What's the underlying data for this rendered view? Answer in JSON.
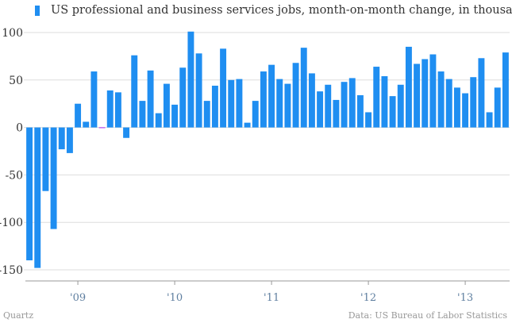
{
  "chart_data": {
    "type": "bar",
    "title": "US professional and business services jobs, month-on-month change, in thousands",
    "xlabel": "",
    "ylabel": "",
    "ylim": [
      -150,
      100
    ],
    "yticks": [
      100,
      50,
      0,
      -50,
      -100,
      -150
    ],
    "ytick_labels": [
      "100",
      "50",
      "0",
      "-50",
      "-100",
      "-150"
    ],
    "xtick_labels": [
      {
        "label": "'09",
        "index": 6
      },
      {
        "label": "'10",
        "index": 18
      },
      {
        "label": "'11",
        "index": 30
      },
      {
        "label": "'12",
        "index": 42
      },
      {
        "label": "'13",
        "index": 54
      }
    ],
    "grid": true,
    "series": [
      {
        "name": "US professional and business services jobs, month-on-month change, in thousands",
        "values": [
          -140,
          -148,
          -67,
          -107,
          -23,
          -27,
          25,
          6,
          59,
          -1,
          39,
          37,
          -11,
          76,
          28,
          60,
          15,
          46,
          24,
          63,
          101,
          78,
          28,
          44,
          83,
          50,
          51,
          5,
          28,
          59,
          66,
          51,
          46,
          68,
          84,
          57,
          38,
          45,
          29,
          48,
          52,
          34,
          16,
          64,
          54,
          33,
          45,
          85,
          67,
          72,
          77,
          59,
          51,
          42,
          36,
          53,
          73,
          16,
          42,
          79
        ]
      }
    ],
    "colors": {
      "bar": "#1f8ef1",
      "special_bar": "#c56cf0",
      "grid": "#dddddd",
      "axis": "#999999"
    },
    "special_bar_index": 9
  },
  "footer": {
    "source_left": "Quartz",
    "source_right": "Data: US Bureau of Labor Statistics"
  }
}
